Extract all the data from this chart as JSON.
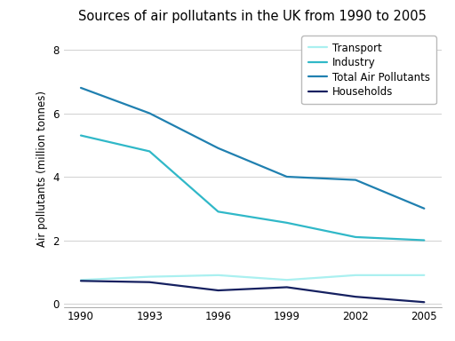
{
  "title": "Sources of air pollutants in the UK from 1990 to 2005",
  "ylabel": "Air pollutants (million tonnes)",
  "years": [
    1990,
    1993,
    1996,
    1999,
    2002,
    2005
  ],
  "series": {
    "Transport": {
      "values": [
        0.75,
        0.85,
        0.9,
        0.75,
        0.9,
        0.9
      ],
      "color": "#aaf0f0",
      "linewidth": 1.6
    },
    "Industry": {
      "values": [
        5.3,
        4.8,
        2.9,
        2.55,
        2.1,
        2.0
      ],
      "color": "#30b8c8",
      "linewidth": 1.6
    },
    "Total Air Pollutants": {
      "values": [
        6.8,
        6.0,
        4.9,
        4.0,
        3.9,
        3.0
      ],
      "color": "#2080b0",
      "linewidth": 1.6
    },
    "Households": {
      "values": [
        0.72,
        0.68,
        0.42,
        0.52,
        0.22,
        0.05
      ],
      "color": "#152060",
      "linewidth": 1.6
    }
  },
  "ylim": [
    -0.1,
    8.6
  ],
  "yticks": [
    0,
    2,
    4,
    6,
    8
  ],
  "xticks": [
    1990,
    1993,
    1996,
    1999,
    2002,
    2005
  ],
  "legend_order": [
    "Transport",
    "Industry",
    "Total Air Pollutants",
    "Households"
  ],
  "background_color": "#ffffff",
  "grid_color": "#d0d0d0",
  "title_fontsize": 10.5,
  "label_fontsize": 8.5,
  "tick_fontsize": 8.5,
  "legend_fontsize": 8.5
}
